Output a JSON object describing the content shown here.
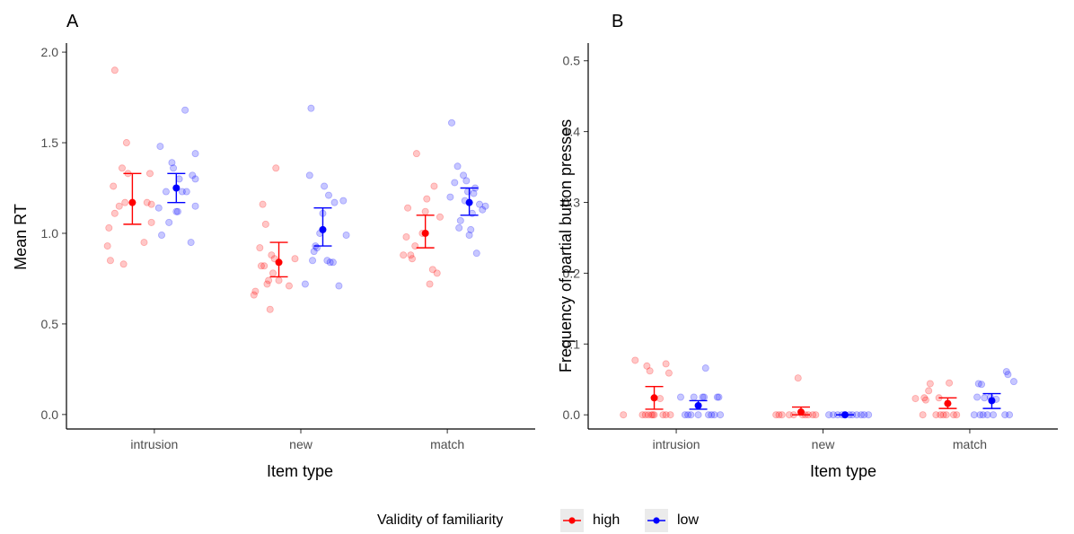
{
  "chart_data": [
    {
      "type": "scatter",
      "tag": "A",
      "xlabel": "Item type",
      "ylabel": "Mean RT",
      "categories": [
        "intrusion",
        "new",
        "match"
      ],
      "ylim": [
        -0.08,
        2.05
      ],
      "yticks": [
        0.0,
        0.5,
        1.0,
        1.5,
        2.0
      ],
      "ytick_labels": [
        "0.0",
        "0.5",
        "1.0",
        "1.5",
        "2.0"
      ],
      "grid": false,
      "series": [
        {
          "name": "high",
          "color": "#ff0000",
          "summary": [
            {
              "mean": 1.17,
              "lower": 1.05,
              "upper": 1.33
            },
            {
              "mean": 0.84,
              "lower": 0.76,
              "upper": 0.95
            },
            {
              "mean": 1.0,
              "lower": 0.92,
              "upper": 1.1
            }
          ],
          "points": [
            {
              "x": 0.68,
              "y": 0.93
            },
            {
              "x": 0.69,
              "y": 1.03
            },
            {
              "x": 0.7,
              "y": 0.85
            },
            {
              "x": 0.72,
              "y": 1.26
            },
            {
              "x": 0.73,
              "y": 1.11
            },
            {
              "x": 0.73,
              "y": 1.9
            },
            {
              "x": 0.76,
              "y": 1.15
            },
            {
              "x": 0.78,
              "y": 1.36
            },
            {
              "x": 0.79,
              "y": 0.83
            },
            {
              "x": 0.8,
              "y": 1.17
            },
            {
              "x": 0.81,
              "y": 1.5
            },
            {
              "x": 0.82,
              "y": 1.33
            },
            {
              "x": 0.93,
              "y": 0.95
            },
            {
              "x": 0.95,
              "y": 1.17
            },
            {
              "x": 0.97,
              "y": 1.33
            },
            {
              "x": 0.98,
              "y": 1.06
            },
            {
              "x": 0.98,
              "y": 1.16
            },
            {
              "x": 1.68,
              "y": 0.66
            },
            {
              "x": 1.69,
              "y": 0.68
            },
            {
              "x": 1.72,
              "y": 0.92
            },
            {
              "x": 1.73,
              "y": 0.82
            },
            {
              "x": 1.74,
              "y": 1.16
            },
            {
              "x": 1.75,
              "y": 0.82
            },
            {
              "x": 1.76,
              "y": 1.05
            },
            {
              "x": 1.77,
              "y": 0.72
            },
            {
              "x": 1.78,
              "y": 0.74
            },
            {
              "x": 1.79,
              "y": 0.58
            },
            {
              "x": 1.8,
              "y": 0.88
            },
            {
              "x": 1.81,
              "y": 0.78
            },
            {
              "x": 1.82,
              "y": 0.86
            },
            {
              "x": 1.83,
              "y": 1.36
            },
            {
              "x": 1.85,
              "y": 0.74
            },
            {
              "x": 1.92,
              "y": 0.71
            },
            {
              "x": 1.96,
              "y": 0.86
            },
            {
              "x": 2.7,
              "y": 0.88
            },
            {
              "x": 2.72,
              "y": 0.98
            },
            {
              "x": 2.73,
              "y": 1.14
            },
            {
              "x": 2.75,
              "y": 0.88
            },
            {
              "x": 2.76,
              "y": 0.86
            },
            {
              "x": 2.78,
              "y": 0.93
            },
            {
              "x": 2.79,
              "y": 1.44
            },
            {
              "x": 2.83,
              "y": 1.0
            },
            {
              "x": 2.85,
              "y": 1.12
            },
            {
              "x": 2.86,
              "y": 1.19
            },
            {
              "x": 2.88,
              "y": 0.72
            },
            {
              "x": 2.9,
              "y": 0.8
            },
            {
              "x": 2.91,
              "y": 1.26
            },
            {
              "x": 2.93,
              "y": 0.78
            },
            {
              "x": 2.95,
              "y": 1.09
            }
          ]
        },
        {
          "name": "low",
          "color": "#0000ff",
          "summary": [
            {
              "mean": 1.25,
              "lower": 1.17,
              "upper": 1.33
            },
            {
              "mean": 1.02,
              "lower": 0.93,
              "upper": 1.14
            },
            {
              "mean": 1.17,
              "lower": 1.1,
              "upper": 1.25
            }
          ],
          "points": [
            {
              "x": 1.03,
              "y": 1.14
            },
            {
              "x": 1.04,
              "y": 1.48
            },
            {
              "x": 1.05,
              "y": 0.99
            },
            {
              "x": 1.08,
              "y": 1.23
            },
            {
              "x": 1.1,
              "y": 1.06
            },
            {
              "x": 1.12,
              "y": 1.39
            },
            {
              "x": 1.13,
              "y": 1.36
            },
            {
              "x": 1.15,
              "y": 1.12
            },
            {
              "x": 1.16,
              "y": 1.12
            },
            {
              "x": 1.17,
              "y": 1.3
            },
            {
              "x": 1.19,
              "y": 1.23
            },
            {
              "x": 1.21,
              "y": 1.68
            },
            {
              "x": 1.22,
              "y": 1.23
            },
            {
              "x": 1.25,
              "y": 0.95
            },
            {
              "x": 1.26,
              "y": 1.32
            },
            {
              "x": 1.28,
              "y": 1.3
            },
            {
              "x": 1.28,
              "y": 1.44
            },
            {
              "x": 1.28,
              "y": 1.15
            },
            {
              "x": 2.03,
              "y": 0.72
            },
            {
              "x": 2.06,
              "y": 1.32
            },
            {
              "x": 2.07,
              "y": 1.69
            },
            {
              "x": 2.08,
              "y": 0.85
            },
            {
              "x": 2.09,
              "y": 0.9
            },
            {
              "x": 2.1,
              "y": 0.93
            },
            {
              "x": 2.11,
              "y": 0.92
            },
            {
              "x": 2.13,
              "y": 1.0
            },
            {
              "x": 2.15,
              "y": 1.11
            },
            {
              "x": 2.16,
              "y": 1.26
            },
            {
              "x": 2.18,
              "y": 0.85
            },
            {
              "x": 2.19,
              "y": 1.21
            },
            {
              "x": 2.2,
              "y": 0.84
            },
            {
              "x": 2.22,
              "y": 0.84
            },
            {
              "x": 2.23,
              "y": 1.17
            },
            {
              "x": 2.26,
              "y": 0.71
            },
            {
              "x": 2.29,
              "y": 1.18
            },
            {
              "x": 2.31,
              "y": 0.99
            },
            {
              "x": 3.02,
              "y": 1.2
            },
            {
              "x": 3.03,
              "y": 1.61
            },
            {
              "x": 3.05,
              "y": 1.28
            },
            {
              "x": 3.07,
              "y": 1.37
            },
            {
              "x": 3.08,
              "y": 1.03
            },
            {
              "x": 3.09,
              "y": 1.07
            },
            {
              "x": 3.11,
              "y": 1.32
            },
            {
              "x": 3.12,
              "y": 1.18
            },
            {
              "x": 3.13,
              "y": 1.29
            },
            {
              "x": 3.14,
              "y": 1.23
            },
            {
              "x": 3.15,
              "y": 0.99
            },
            {
              "x": 3.16,
              "y": 1.02
            },
            {
              "x": 3.17,
              "y": 1.11
            },
            {
              "x": 3.18,
              "y": 1.22
            },
            {
              "x": 3.19,
              "y": 1.25
            },
            {
              "x": 3.2,
              "y": 0.89
            },
            {
              "x": 3.22,
              "y": 1.16
            },
            {
              "x": 3.24,
              "y": 1.13
            },
            {
              "x": 3.26,
              "y": 1.15
            }
          ]
        }
      ]
    },
    {
      "type": "scatter",
      "tag": "B",
      "xlabel": "Item type",
      "ylabel": "Frequency of partial button presses",
      "categories": [
        "intrusion",
        "new",
        "match"
      ],
      "ylim": [
        -0.02,
        0.525
      ],
      "yticks": [
        0.0,
        0.1,
        0.2,
        0.3,
        0.4,
        0.5
      ],
      "ytick_labels": [
        "0.0",
        "0.1",
        "0.2",
        "0.3",
        "0.4",
        "0.5"
      ],
      "grid": false,
      "series": [
        {
          "name": "high",
          "color": "#ff0000",
          "summary": [
            {
              "mean": 0.024,
              "lower": 0.008,
              "upper": 0.04
            },
            {
              "mean": 0.004,
              "lower": 0.0,
              "upper": 0.011
            },
            {
              "mean": 0.016,
              "lower": 0.009,
              "upper": 0.024
            }
          ],
          "points": [
            {
              "x": 0.64,
              "y": 0.0
            },
            {
              "x": 0.72,
              "y": 0.077
            },
            {
              "x": 0.77,
              "y": 0.0
            },
            {
              "x": 0.79,
              "y": 0.0
            },
            {
              "x": 0.8,
              "y": 0.069
            },
            {
              "x": 0.81,
              "y": 0.0
            },
            {
              "x": 0.82,
              "y": 0.062
            },
            {
              "x": 0.83,
              "y": 0.0
            },
            {
              "x": 0.84,
              "y": 0.0
            },
            {
              "x": 0.85,
              "y": 0.0
            },
            {
              "x": 0.89,
              "y": 0.023
            },
            {
              "x": 0.91,
              "y": 0.0
            },
            {
              "x": 0.93,
              "y": 0.0
            },
            {
              "x": 0.93,
              "y": 0.072
            },
            {
              "x": 0.95,
              "y": 0.059
            },
            {
              "x": 0.96,
              "y": 0.0
            },
            {
              "x": 1.68,
              "y": 0.0
            },
            {
              "x": 1.7,
              "y": 0.0
            },
            {
              "x": 1.72,
              "y": 0.0
            },
            {
              "x": 1.77,
              "y": 0.0
            },
            {
              "x": 1.8,
              "y": 0.0
            },
            {
              "x": 1.83,
              "y": 0.052
            },
            {
              "x": 1.86,
              "y": 0.0
            },
            {
              "x": 1.88,
              "y": 0.0
            },
            {
              "x": 1.9,
              "y": 0.0
            },
            {
              "x": 1.93,
              "y": 0.0
            },
            {
              "x": 1.95,
              "y": 0.0
            },
            {
              "x": 2.63,
              "y": 0.023
            },
            {
              "x": 2.68,
              "y": 0.0
            },
            {
              "x": 2.69,
              "y": 0.024
            },
            {
              "x": 2.7,
              "y": 0.021
            },
            {
              "x": 2.72,
              "y": 0.034
            },
            {
              "x": 2.73,
              "y": 0.044
            },
            {
              "x": 2.77,
              "y": 0.0
            },
            {
              "x": 2.79,
              "y": 0.024
            },
            {
              "x": 2.8,
              "y": 0.0
            },
            {
              "x": 2.82,
              "y": 0.0
            },
            {
              "x": 2.84,
              "y": 0.0
            },
            {
              "x": 2.86,
              "y": 0.045
            },
            {
              "x": 2.89,
              "y": 0.0
            },
            {
              "x": 2.91,
              "y": 0.0
            }
          ]
        },
        {
          "name": "low",
          "color": "#0000ff",
          "summary": [
            {
              "mean": 0.013,
              "lower": 0.008,
              "upper": 0.02
            },
            {
              "mean": 0.0,
              "lower": 0.0,
              "upper": 0.0
            },
            {
              "mean": 0.02,
              "lower": 0.009,
              "upper": 0.03
            }
          ],
          "points": [
            {
              "x": 1.03,
              "y": 0.025
            },
            {
              "x": 1.06,
              "y": 0.0
            },
            {
              "x": 1.08,
              "y": 0.0
            },
            {
              "x": 1.1,
              "y": 0.0
            },
            {
              "x": 1.12,
              "y": 0.025
            },
            {
              "x": 1.15,
              "y": 0.0
            },
            {
              "x": 1.18,
              "y": 0.025
            },
            {
              "x": 1.19,
              "y": 0.025
            },
            {
              "x": 1.2,
              "y": 0.066
            },
            {
              "x": 1.22,
              "y": 0.0
            },
            {
              "x": 1.24,
              "y": 0.0
            },
            {
              "x": 1.26,
              "y": 0.0
            },
            {
              "x": 1.28,
              "y": 0.025
            },
            {
              "x": 1.29,
              "y": 0.025
            },
            {
              "x": 1.3,
              "y": 0.0
            },
            {
              "x": 2.04,
              "y": 0.0
            },
            {
              "x": 2.07,
              "y": 0.0
            },
            {
              "x": 2.1,
              "y": 0.0
            },
            {
              "x": 2.13,
              "y": 0.0
            },
            {
              "x": 2.18,
              "y": 0.0
            },
            {
              "x": 2.2,
              "y": 0.0
            },
            {
              "x": 2.23,
              "y": 0.0
            },
            {
              "x": 2.26,
              "y": 0.0
            },
            {
              "x": 2.28,
              "y": 0.0
            },
            {
              "x": 2.31,
              "y": 0.0
            },
            {
              "x": 3.03,
              "y": 0.0
            },
            {
              "x": 3.05,
              "y": 0.025
            },
            {
              "x": 3.06,
              "y": 0.044
            },
            {
              "x": 3.07,
              "y": 0.0
            },
            {
              "x": 3.08,
              "y": 0.043
            },
            {
              "x": 3.09,
              "y": 0.0
            },
            {
              "x": 3.1,
              "y": 0.024
            },
            {
              "x": 3.12,
              "y": 0.0
            },
            {
              "x": 3.14,
              "y": 0.025
            },
            {
              "x": 3.16,
              "y": 0.0
            },
            {
              "x": 3.18,
              "y": 0.022
            },
            {
              "x": 3.24,
              "y": 0.0
            },
            {
              "x": 3.25,
              "y": 0.061
            },
            {
              "x": 3.26,
              "y": 0.057
            },
            {
              "x": 3.27,
              "y": 0.0
            },
            {
              "x": 3.3,
              "y": 0.047
            }
          ]
        }
      ]
    }
  ],
  "legend": {
    "title": "Validity of familiarity",
    "position": "bottom",
    "items": [
      {
        "label": "high",
        "color": "#ff0000"
      },
      {
        "label": "low",
        "color": "#0000ff"
      }
    ]
  }
}
